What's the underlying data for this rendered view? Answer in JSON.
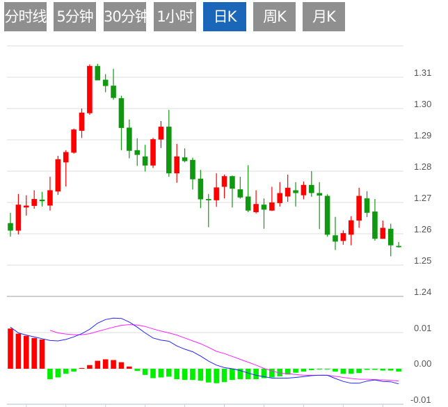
{
  "tabs": [
    {
      "label": "分时线",
      "active": false
    },
    {
      "label": "5分钟",
      "active": false
    },
    {
      "label": "30分钟",
      "active": false
    },
    {
      "label": "1小时",
      "active": false
    },
    {
      "label": "日K",
      "active": true
    },
    {
      "label": "周K",
      "active": false
    },
    {
      "label": "月K",
      "active": false
    }
  ],
  "colors": {
    "up": "#ff0000",
    "down": "#109910",
    "macd_up": "#ff0000",
    "macd_down": "#00ee00",
    "dif": "#2222ff",
    "dea": "#ff22ff",
    "tab_bg": "#8f8f8f",
    "tab_active": "#1a66b8"
  },
  "chart_data": [
    {
      "type": "candlestick",
      "title": "",
      "y_ticks": [
        "1.31",
        "1.30",
        "1.29",
        "1.28",
        "1.27",
        "1.26",
        "1.25",
        "1.24"
      ],
      "ylim": [
        1.24,
        1.32
      ],
      "ohlc": [
        [
          1.2634,
          1.2667,
          1.2591,
          1.261
        ],
        [
          1.261,
          1.2727,
          1.2598,
          1.2693
        ],
        [
          1.2684,
          1.2723,
          1.2658,
          1.269
        ],
        [
          1.2689,
          1.2739,
          1.268,
          1.2711
        ],
        [
          1.2709,
          1.2734,
          1.2687,
          1.2704
        ],
        [
          1.269,
          1.2782,
          1.2674,
          1.2739
        ],
        [
          1.2735,
          1.2849,
          1.2724,
          1.2838
        ],
        [
          1.2828,
          1.2867,
          1.2751,
          1.2861
        ],
        [
          1.2859,
          1.2936,
          1.2856,
          1.2933
        ],
        [
          1.2929,
          1.3,
          1.2906,
          1.2987
        ],
        [
          1.2985,
          1.3141,
          1.298,
          1.3136
        ],
        [
          1.3136,
          1.3143,
          1.309,
          1.309
        ],
        [
          1.3092,
          1.311,
          1.3052,
          1.3072
        ],
        [
          1.3073,
          1.3127,
          1.3028,
          1.3034
        ],
        [
          1.3033,
          1.3041,
          1.2867,
          1.2938
        ],
        [
          1.2939,
          1.2965,
          1.2841,
          1.2865
        ],
        [
          1.2867,
          1.2905,
          1.2817,
          1.2852
        ],
        [
          1.2847,
          1.2884,
          1.2799,
          1.2818
        ],
        [
          1.2818,
          1.2906,
          1.281,
          1.2902
        ],
        [
          1.2901,
          1.296,
          1.2874,
          1.2942
        ],
        [
          1.2942,
          1.2996,
          1.2782,
          1.2793
        ],
        [
          1.2793,
          1.2887,
          1.2763,
          1.2847
        ],
        [
          1.2844,
          1.2873,
          1.2828,
          1.2832
        ],
        [
          1.2836,
          1.2843,
          1.2741,
          1.2774
        ],
        [
          1.2776,
          1.2804,
          1.2682,
          1.271
        ],
        [
          1.2711,
          1.2727,
          1.2621,
          1.2707
        ],
        [
          1.2707,
          1.2793,
          1.2686,
          1.2748
        ],
        [
          1.275,
          1.2789,
          1.2713,
          1.2784
        ],
        [
          1.2784,
          1.2786,
          1.2684,
          1.2744
        ],
        [
          1.2742,
          1.2782,
          1.2712,
          1.2716
        ],
        [
          1.2719,
          1.2819,
          1.2669,
          1.2674
        ],
        [
          1.2669,
          1.2739,
          1.2665,
          1.2695
        ],
        [
          1.2693,
          1.2713,
          1.2616,
          1.2677
        ],
        [
          1.2674,
          1.275,
          1.2673,
          1.27
        ],
        [
          1.2698,
          1.2765,
          1.2687,
          1.273
        ],
        [
          1.2719,
          1.2789,
          1.2702,
          1.2747
        ],
        [
          1.2739,
          1.2765,
          1.2687,
          1.273
        ],
        [
          1.2723,
          1.2767,
          1.271,
          1.2756
        ],
        [
          1.2756,
          1.28,
          1.2718,
          1.273
        ],
        [
          1.273,
          1.2765,
          1.2615,
          1.2722
        ],
        [
          1.2721,
          1.2726,
          1.2591,
          1.2597
        ],
        [
          1.2595,
          1.2654,
          1.2548,
          1.2575
        ],
        [
          1.2577,
          1.2611,
          1.2565,
          1.2602
        ],
        [
          1.2597,
          1.2656,
          1.2563,
          1.2643
        ],
        [
          1.2642,
          1.2747,
          1.2619,
          1.2721
        ],
        [
          1.2713,
          1.2736,
          1.2653,
          1.2667
        ],
        [
          1.2671,
          1.2711,
          1.2578,
          1.2584
        ],
        [
          1.2584,
          1.2642,
          1.2584,
          1.2619
        ],
        [
          1.2616,
          1.2632,
          1.2528,
          1.2563
        ],
        [
          1.2561,
          1.2574,
          1.2556,
          1.2557
        ]
      ]
    },
    {
      "type": "macd",
      "y_ticks": [
        "0.01",
        "0.00",
        "-0.01"
      ],
      "ylim": [
        -0.01,
        0.0099
      ],
      "histogram": [
        0.0111,
        0.0097,
        0.0091,
        0.0085,
        0.0081,
        -0.0029,
        -0.0024,
        -0.0014,
        -0.0008,
        0.0002,
        0.001,
        0.0022,
        0.0026,
        0.0024,
        0.0018,
        0.0006,
        -0.0006,
        -0.0017,
        -0.0026,
        -0.0024,
        -0.0022,
        -0.0029,
        -0.0031,
        -0.0031,
        -0.0033,
        -0.0038,
        -0.004,
        -0.0037,
        -0.0031,
        -0.0029,
        -0.0029,
        -0.0029,
        -0.0026,
        -0.0024,
        -0.0021,
        -0.0016,
        -0.0011,
        -0.0008,
        -0.0004,
        -0.0002,
        -0.0002,
        -0.0008,
        -0.0014,
        -0.0014,
        -0.0012,
        -0.0003,
        -0.0003,
        -0.0005,
        -0.0005,
        -0.0008
      ],
      "dif": [
        0.0115,
        0.0099,
        0.0093,
        0.0088,
        0.0083,
        0.0078,
        0.0077,
        0.0081,
        0.0088,
        0.0097,
        0.0109,
        0.0126,
        0.0136,
        0.014,
        0.0139,
        0.0129,
        0.0115,
        0.0099,
        0.0085,
        0.0079,
        0.0076,
        0.0063,
        0.0054,
        0.0047,
        0.0035,
        0.0021,
        0.001,
        0.0003,
        0.0,
        -0.0005,
        -0.0012,
        -0.0018,
        -0.0022,
        -0.0026,
        -0.0026,
        -0.0026,
        -0.0024,
        -0.0022,
        -0.0019,
        -0.0018,
        -0.0018,
        -0.0027,
        -0.0035,
        -0.004,
        -0.004,
        -0.0034,
        -0.0031,
        -0.0035,
        -0.0036,
        -0.0042
      ],
      "dea": [
        null,
        null,
        null,
        null,
        null,
        0.0106,
        0.0099,
        0.0096,
        0.0094,
        0.0094,
        0.0097,
        0.0103,
        0.0109,
        0.0115,
        0.012,
        0.0122,
        0.0121,
        0.0117,
        0.011,
        0.0104,
        0.0099,
        0.0093,
        0.0085,
        0.0077,
        0.0069,
        0.0059,
        0.0048,
        0.0042,
        0.0034,
        0.0026,
        0.0018,
        0.001,
        0.0001,
        -0.0006,
        -0.0012,
        -0.0014,
        -0.0016,
        -0.0018,
        -0.0018,
        -0.0018,
        -0.0018,
        -0.0021,
        -0.0024,
        -0.0027,
        -0.0029,
        -0.0029,
        -0.003,
        -0.0031,
        -0.0032,
        -0.0034
      ]
    }
  ]
}
